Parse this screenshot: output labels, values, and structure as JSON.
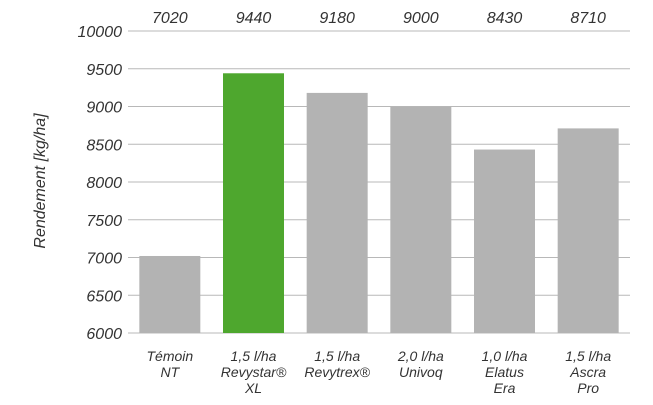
{
  "chart_data": {
    "type": "bar",
    "categories": [
      [
        "Témoin",
        "NT"
      ],
      [
        "1,5 l/ha",
        "Revystar®",
        "XL"
      ],
      [
        "1,5 l/ha",
        "Revytrex®"
      ],
      [
        "2,0 l/ha",
        "Univoq"
      ],
      [
        "1,0 l/ha",
        "Elatus",
        "Era"
      ],
      [
        "1,5 l/ha",
        "Ascra",
        "Pro"
      ]
    ],
    "values": [
      7020,
      9440,
      9180,
      9000,
      8430,
      8710
    ],
    "value_labels": [
      "7020",
      "9440",
      "9180",
      "9000",
      "8430",
      "8710"
    ],
    "ylabel": "Rendement [kg/ha]",
    "xlabel": "",
    "title": "",
    "ylim": [
      6000,
      10000
    ],
    "yticks": [
      6000,
      6500,
      7000,
      7500,
      8000,
      8500,
      9000,
      9500,
      10000
    ],
    "grid": true,
    "legend": "none",
    "colors": {
      "default": "#b3b3b3",
      "highlight": "#4ea72e",
      "grid": "#b8b8b8",
      "text": "#333333"
    },
    "highlight_index": 1
  }
}
